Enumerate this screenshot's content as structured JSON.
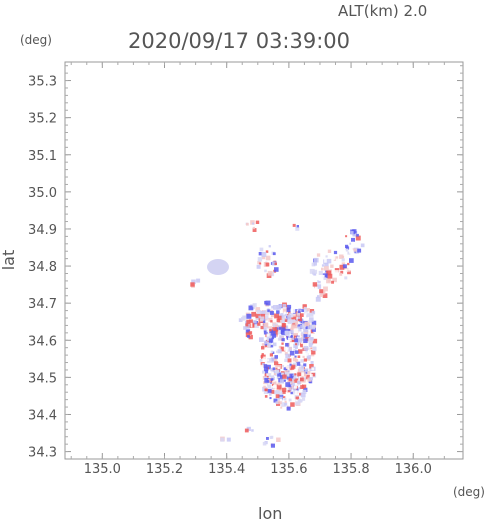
{
  "header": {
    "altitude_label": "ALT(km)  2.0",
    "timestamp": "2020/09/17 03:39:00"
  },
  "axes": {
    "x_title": "lon",
    "y_title": "lat",
    "x_unit": "(deg)",
    "y_unit": "(deg)",
    "x_ticks": [
      "135.0",
      "135.2",
      "135.4",
      "135.6",
      "135.8",
      "136.0"
    ],
    "y_ticks": [
      "35.3",
      "35.2",
      "35.1",
      "35.0",
      "34.9",
      "34.8",
      "34.7",
      "34.6",
      "34.5",
      "34.4",
      "34.3"
    ]
  },
  "chart_data": {
    "type": "heatmap",
    "xlim": [
      134.88,
      136.16
    ],
    "ylim": [
      34.28,
      35.35
    ],
    "x_tick_values": [
      135.0,
      135.2,
      135.4,
      135.6,
      135.8,
      136.0
    ],
    "y_tick_values": [
      35.3,
      35.2,
      35.1,
      35.0,
      34.9,
      34.8,
      34.7,
      34.6,
      34.5,
      34.4,
      34.3
    ],
    "grid": false,
    "colors": {
      "positive": "#ef5b5b",
      "negative": "#5b5bef",
      "near_zero": "#d8d8f4"
    }
  }
}
